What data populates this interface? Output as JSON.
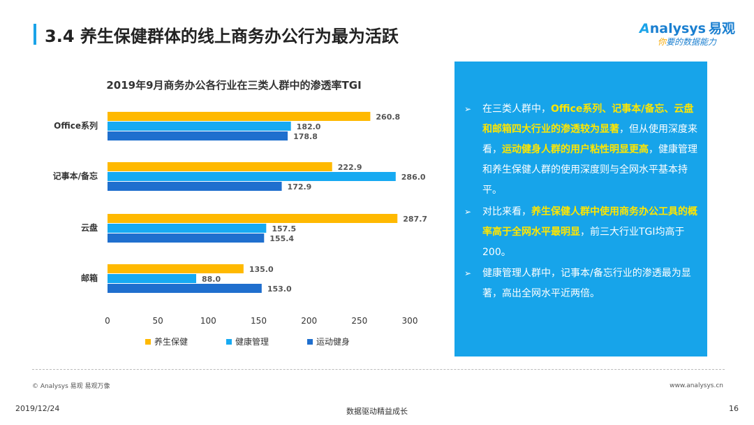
{
  "slide": {
    "title": "3.4 养生保健群体的线上商务办公行为最为活跃",
    "logo": {
      "brand": "nalysys",
      "brand_initial": "A",
      "brand_cn": "易观",
      "tagline_first": "你",
      "tagline_rest": "要的数据能力"
    },
    "copyright": "© Analysys 易观 易观万像",
    "website": "www.analysys.cn",
    "footer": {
      "date": "2019/12/24",
      "center": "数据驱动精益成长",
      "page": "16"
    }
  },
  "chart_data": {
    "type": "bar",
    "orientation": "horizontal",
    "title": "2019年9月商务办公各行业在三类人群中的渗透率TGI",
    "categories": [
      "Office系列",
      "记事本/备忘",
      "云盘",
      "邮箱"
    ],
    "series": [
      {
        "name": "养生保健",
        "color": "#ffb900",
        "values": [
          260.8,
          222.9,
          287.7,
          135.0
        ]
      },
      {
        "name": "健康管理",
        "color": "#17aaf2",
        "values": [
          182.0,
          286.0,
          157.5,
          88.0
        ]
      },
      {
        "name": "运动健身",
        "color": "#1f6fce",
        "values": [
          178.8,
          172.9,
          155.4,
          153.0
        ]
      }
    ],
    "value_labels": [
      [
        "260.8",
        "222.9",
        "287.7",
        "135.0"
      ],
      [
        "182.0",
        "286.0",
        "157.5",
        "88.0"
      ],
      [
        "178.8",
        "172.9",
        "155.4",
        "153.0"
      ]
    ],
    "xlim": [
      0,
      300
    ],
    "xticks": [
      0,
      50,
      100,
      150,
      200,
      250,
      300
    ],
    "grid": false,
    "legend": "bottom"
  },
  "insights": [
    {
      "parts": [
        {
          "t": "在三类人群中，",
          "h": false
        },
        {
          "t": "Office系列、记事本/备忘、云盘和邮箱四大行业的渗透较为显著",
          "h": true
        },
        {
          "t": "，但从使用深度来看，",
          "h": false
        },
        {
          "t": "运动健身人群的用户粘性明显更高",
          "h": true
        },
        {
          "t": "，健康管理和养生保健人群的使用深度则与全网水平基本持平。",
          "h": false
        }
      ]
    },
    {
      "parts": [
        {
          "t": "对比来看，",
          "h": false
        },
        {
          "t": "养生保健人群中使用商务办公工具的概率高于全网水平最明显",
          "h": true
        },
        {
          "t": "，前三大行业TGI均高于200。",
          "h": false
        }
      ]
    },
    {
      "parts": [
        {
          "t": "健康管理人群中，记事本/备忘行业的渗透最为显著，高出全网水平近两倍。",
          "h": false
        }
      ]
    }
  ]
}
